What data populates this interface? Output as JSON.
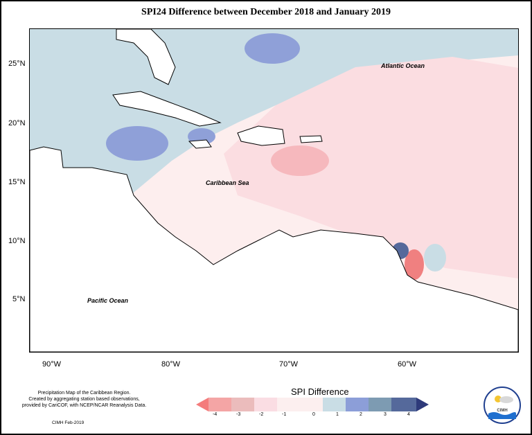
{
  "title": "SPI24 Difference between December 2018 and January 2019",
  "map": {
    "y_axis_labels": [
      "25°N",
      "20°N",
      "15°N",
      "10°N",
      "5°N"
    ],
    "x_axis_labels": [
      "90°W",
      "80°W",
      "70°W",
      "60°W"
    ],
    "labels": {
      "atlantic": "Atlantic Ocean",
      "caribbean": "Caribbean Sea",
      "pacific": "Pacific Ocean"
    },
    "colors": {
      "very_negative": "#f08080",
      "negative": "#f6b8bd",
      "slightly_negative": "#fbdde1",
      "near_zero": "#fdeeee",
      "slightly_positive": "#c9dde5",
      "positive": "#8fa0d8",
      "land": "#ffffff"
    }
  },
  "legend": {
    "title": "SPI Difference",
    "ticks": [
      "-4",
      "-3",
      "-2",
      "-1",
      "0",
      "1",
      "2",
      "3",
      "4"
    ],
    "colors": [
      "#f47c7c",
      "#f4a5a5",
      "#ebbcbc",
      "#fadde3",
      "#fcefef",
      "#c9dde5",
      "#8c9ed8",
      "#7d9bb2",
      "#55699b",
      "#2e3a7a"
    ]
  },
  "credit": {
    "line1": "Precipitation Map of the Caribbean Region.",
    "line2": "Created by aggregating station based observations,",
    "line3": "provided by CariCOF, with NCEP/NCAR Reanalysis Data.",
    "date": "CIMH Feb-2019"
  },
  "logo": {
    "text": "CIMH"
  }
}
